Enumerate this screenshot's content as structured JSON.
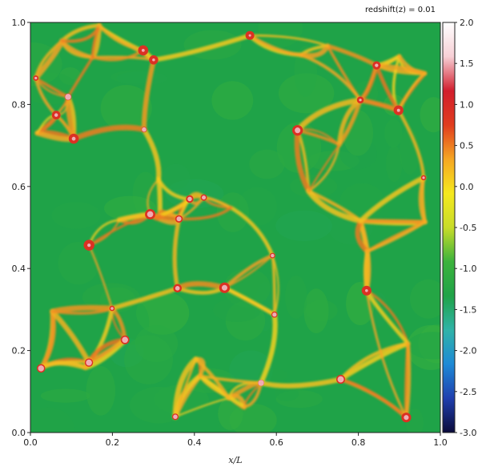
{
  "chart_data": {
    "type": "heatmap",
    "title": "redshift(z) = 0.01",
    "xlabel": "x/L",
    "ylabel": "",
    "xlim": [
      0.0,
      1.0
    ],
    "ylim": [
      0.0,
      1.0
    ],
    "x_ticks": [
      "0.0",
      "0.2",
      "0.4",
      "0.6",
      "0.8",
      "1.0"
    ],
    "y_ticks": [
      "0.0",
      "0.2",
      "0.4",
      "0.6",
      "0.8",
      "1.0"
    ],
    "colorbar": {
      "range": [
        -3.0,
        2.0
      ],
      "ticks": [
        "2.0",
        "1.5",
        "1.0",
        "0.5",
        "0.0",
        "-0.5",
        "-1.0",
        "-1.5",
        "-2.0",
        "-2.5",
        "-3.0"
      ],
      "colors": [
        "#0a0a3a",
        "#1f3fae",
        "#1e8ad6",
        "#2fb3a8",
        "#1fa348",
        "#3cb33c",
        "#c8dc2a",
        "#f5e81e",
        "#f5a623",
        "#e03c1e",
        "#d21e2d",
        "#f7d0d6",
        "#ffffff"
      ]
    },
    "grid": false,
    "description_values": {
      "background_level": -0.7,
      "void_level": -1.2,
      "filament_level": 0.3,
      "halo_level": 1.5
    }
  }
}
